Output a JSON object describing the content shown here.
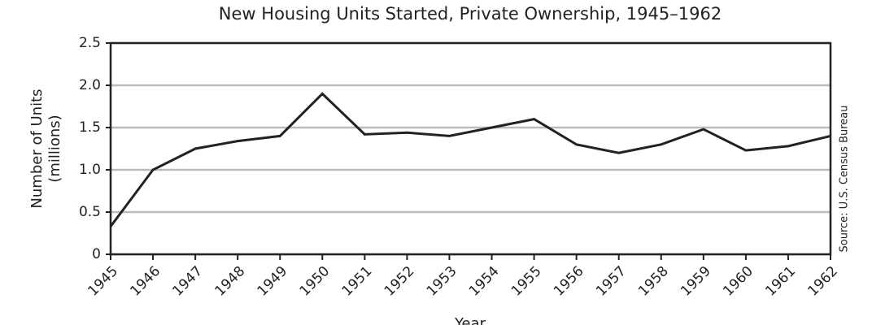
{
  "chart_data": {
    "type": "line",
    "title": "New Housing Units Started, Private Ownership, 1945–1962",
    "x_label": "Year",
    "y_label": [
      "Number of Units",
      "(millions)"
    ],
    "source": "Source: U.S. Census Bureau",
    "categories": [
      "1945",
      "1946",
      "1947",
      "1948",
      "1949",
      "1950",
      "1951",
      "1952",
      "1953",
      "1954",
      "1955",
      "1956",
      "1957",
      "1958",
      "1959",
      "1960",
      "1961",
      "1962"
    ],
    "series": [
      {
        "name": "Housing units started",
        "color": "#222222",
        "values": [
          0.33,
          1.0,
          1.25,
          1.34,
          1.4,
          1.9,
          1.42,
          1.44,
          1.4,
          1.5,
          1.6,
          1.3,
          1.2,
          1.3,
          1.48,
          1.23,
          1.28,
          1.4
        ]
      }
    ],
    "ylim": [
      0,
      2.5
    ],
    "yticks": [
      0,
      0.5,
      {
        "value": 1,
        "label": "1.0"
      },
      {
        "value": 1.5,
        "label": "1.5"
      },
      {
        "value": 2,
        "label": "2.0"
      },
      2.5
    ],
    "grid": true
  }
}
